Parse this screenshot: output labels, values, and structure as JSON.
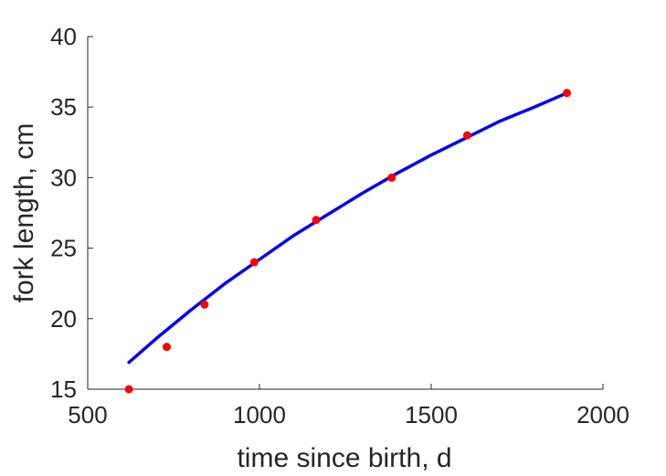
{
  "chart_data": {
    "type": "scatter",
    "xlabel": "time since birth, d",
    "ylabel": "fork length, cm",
    "xlim": [
      500,
      2000
    ],
    "ylim": [
      15,
      40
    ],
    "xticks": [
      500,
      1000,
      1500,
      2000
    ],
    "yticks": [
      15,
      20,
      25,
      30,
      35,
      40
    ],
    "xtick_labels": [
      "500",
      "1000",
      "1500",
      "2000"
    ],
    "ytick_labels": [
      "15",
      "20",
      "25",
      "30",
      "35",
      "40"
    ],
    "grid": false,
    "series": [
      {
        "kind": "points",
        "color": "#ff0000",
        "x": [
          620,
          730,
          840,
          985,
          1165,
          1385,
          1605,
          1895
        ],
        "y": [
          15.0,
          18.0,
          21.0,
          24.0,
          27.0,
          30.0,
          33.0,
          36.0
        ]
      },
      {
        "kind": "line",
        "color": "#0000ff",
        "x": [
          620,
          700,
          800,
          900,
          1000,
          1100,
          1200,
          1300,
          1400,
          1500,
          1600,
          1700,
          1800,
          1895
        ],
        "y": [
          16.9,
          18.6,
          20.6,
          22.5,
          24.2,
          25.9,
          27.4,
          28.9,
          30.3,
          31.6,
          32.8,
          34.0,
          35.0,
          36.0
        ]
      }
    ]
  }
}
